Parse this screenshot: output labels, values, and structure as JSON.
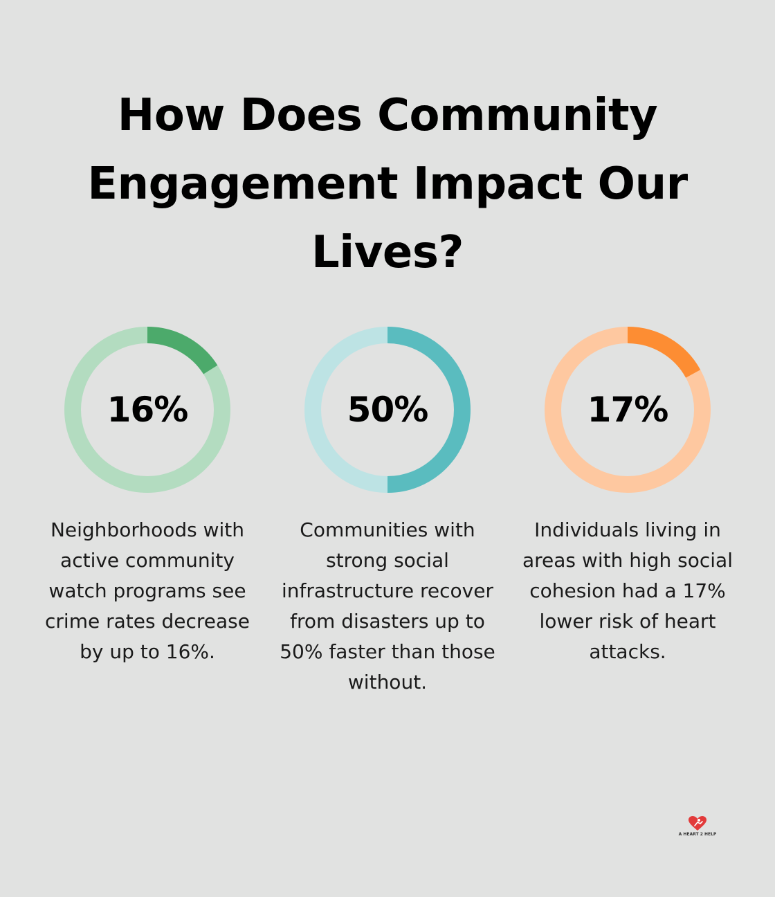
{
  "title": "How Does Community Engagement Impact Our Lives?",
  "chart_data": [
    {
      "type": "pie",
      "style": "donut",
      "value_percent": 16,
      "label": "16%",
      "description": "Neighborhoods with active community watch programs see crime rates decrease by up to 16%.",
      "colors": {
        "track": "#b3dcc0",
        "fill": "#4caa6b"
      }
    },
    {
      "type": "pie",
      "style": "donut",
      "value_percent": 50,
      "label": "50%",
      "description": "Communities with strong social infrastructure recover from disasters up to 50% faster than those without.",
      "colors": {
        "track": "#bde3e4",
        "fill": "#5abcbf"
      }
    },
    {
      "type": "pie",
      "style": "donut",
      "value_percent": 17,
      "label": "17%",
      "description": "Individuals living in areas with high social cohesion had a 17% lower risk of heart attacks.",
      "colors": {
        "track": "#fec8a0",
        "fill": "#fd8d33"
      }
    }
  ],
  "logo": {
    "text": "A HEART 2 HELP",
    "icon": "heart-logo-icon",
    "color": "#e23a3a"
  }
}
